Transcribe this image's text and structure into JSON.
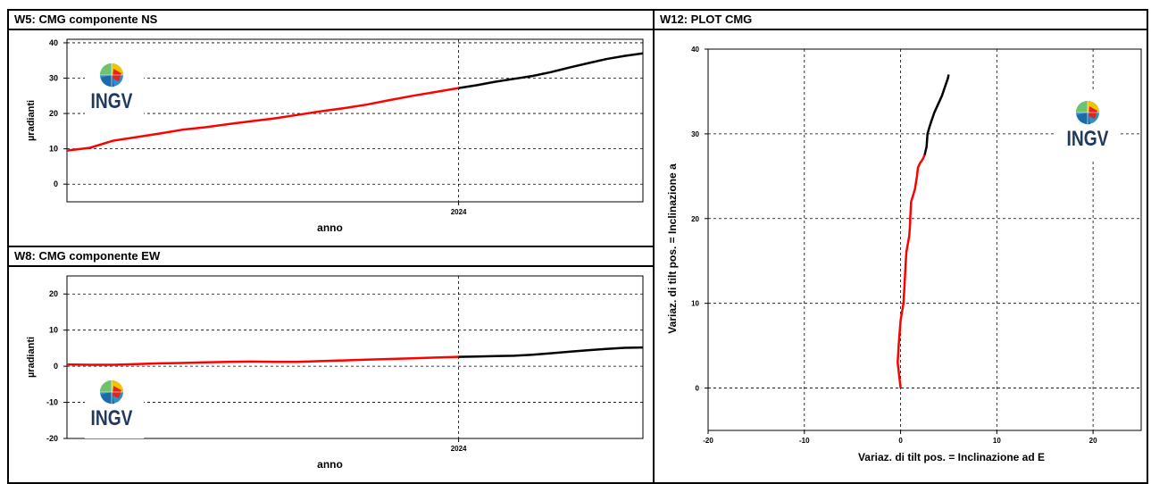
{
  "panels": [
    {
      "id": "ns",
      "title": "W5: CMG componente NS"
    },
    {
      "id": "ew",
      "title": "W8: CMG componente EW"
    },
    {
      "id": "plot",
      "title": "W12: PLOT CMG"
    }
  ],
  "logo_text": "INGV",
  "colors": {
    "before_2024": "#ff0000",
    "after_2024": "#000000",
    "grid": "#000000",
    "frame": "#000000"
  },
  "chart_data": [
    {
      "id": "ns",
      "type": "line",
      "title": "W5: CMG componente NS",
      "xlabel": "anno",
      "ylabel": "µradianti",
      "x_ticks": [
        "2024"
      ],
      "y_ticks": [
        40,
        30,
        20,
        10,
        0
      ],
      "ylim": [
        -5,
        41
      ],
      "x_range_fraction_of_2024_marker": 0.68,
      "series": [
        {
          "values": [
            9.5,
            10.3,
            12.3,
            13.3,
            14.3,
            15.4,
            16.1,
            17.0,
            17.8,
            18.6,
            19.6,
            20.6,
            21.5,
            22.5,
            23.8,
            25.0,
            26.1,
            27.2
          ],
          "color": "#ff0000"
        },
        {
          "values": [
            27.2,
            28.0,
            29.0,
            29.8,
            30.6,
            31.7,
            33.0,
            34.2,
            35.4,
            36.3,
            37.0
          ],
          "color": "#000000"
        }
      ],
      "grid": true
    },
    {
      "id": "ew",
      "type": "line",
      "title": "W8: CMG componente EW",
      "xlabel": "anno",
      "ylabel": "µradianti",
      "x_ticks": [
        "2024"
      ],
      "y_ticks": [
        20,
        10,
        0,
        -10,
        -20
      ],
      "ylim": [
        -20,
        25
      ],
      "series": [
        {
          "values": [
            0.5,
            0.4,
            0.4,
            0.6,
            0.8,
            0.9,
            1.1,
            1.2,
            1.3,
            1.2,
            1.2,
            1.4,
            1.6,
            1.8,
            2.0,
            2.2,
            2.4,
            2.6
          ],
          "color": "#ff0000"
        },
        {
          "values": [
            2.6,
            2.7,
            2.8,
            2.9,
            3.2,
            3.6,
            4.0,
            4.4,
            4.8,
            5.1,
            5.2
          ],
          "color": "#000000"
        }
      ],
      "grid": true
    },
    {
      "id": "plot",
      "type": "scatter",
      "title": "W12: PLOT CMG",
      "xlabel": "Variaz. di tilt pos. = Inclinazione ad E",
      "ylabel": "Variaz. di tilt pos. = Inclinazione a",
      "x_ticks": [
        -20,
        -10,
        0,
        10,
        20
      ],
      "y_ticks": [
        0,
        10,
        20,
        30,
        40
      ],
      "xlim": [
        -20,
        25
      ],
      "ylim": [
        -5,
        40
      ],
      "series": [
        {
          "x": [
            0.0,
            -0.3,
            -0.2,
            0.0,
            0.3,
            0.4,
            0.5,
            0.6,
            0.9,
            1.0,
            1.0,
            1.1,
            1.5,
            1.7,
            1.8,
            2.0,
            2.3,
            2.5
          ],
          "y": [
            0.0,
            3.0,
            5.0,
            8.0,
            10.0,
            12.0,
            14.0,
            16.0,
            18.0,
            19.5,
            20.0,
            22.0,
            23.5,
            25.0,
            26.0,
            26.5,
            27.0,
            27.5
          ],
          "color": "#ff0000"
        },
        {
          "x": [
            2.5,
            2.7,
            2.8,
            3.0,
            3.2,
            3.5,
            3.9,
            4.3,
            4.6,
            4.9,
            5.0
          ],
          "y": [
            27.5,
            28.5,
            30.0,
            30.8,
            31.5,
            32.5,
            33.5,
            34.5,
            35.5,
            36.5,
            37.0
          ],
          "color": "#000000"
        }
      ],
      "grid": true
    }
  ]
}
